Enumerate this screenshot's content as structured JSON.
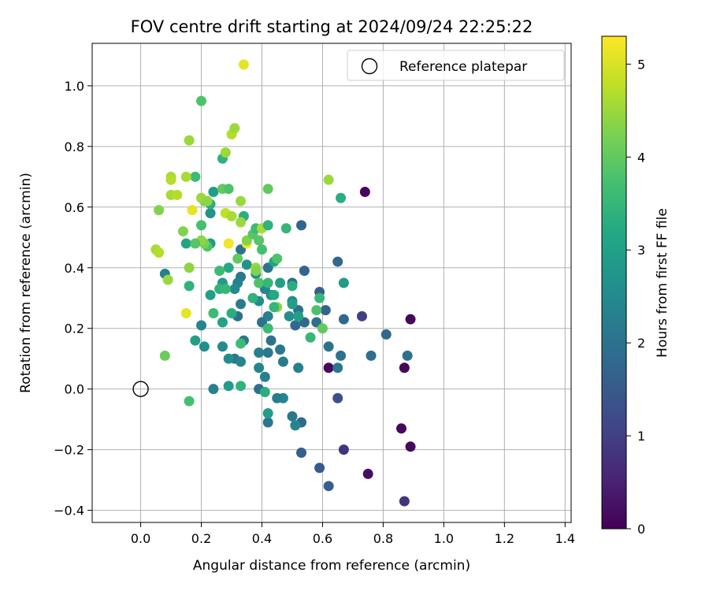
{
  "chart_data": {
    "type": "scatter",
    "title": "FOV centre drift starting at 2024/09/24 22:25:22",
    "xlabel": "Angular distance from reference (arcmin)",
    "ylabel": "Rotation from reference (arcmin)",
    "colorbar_label": "Hours from first FF file",
    "xlim": [
      -0.16,
      1.42
    ],
    "ylim": [
      -0.44,
      1.14
    ],
    "x_ticks": [
      0.0,
      0.2,
      0.4,
      0.6,
      0.8,
      1.0,
      1.2,
      1.4
    ],
    "x_tick_labels": [
      "0.0",
      "0.2",
      "0.4",
      "0.6",
      "0.8",
      "1.0",
      "1.2",
      "1.4"
    ],
    "y_ticks": [
      -0.4,
      -0.2,
      0.0,
      0.2,
      0.4,
      0.6,
      0.8,
      1.0
    ],
    "y_tick_labels": [
      "−0.4",
      "−0.2",
      "0.0",
      "0.2",
      "0.4",
      "0.6",
      "0.8",
      "1.0"
    ],
    "colorbar_range": [
      0,
      5.3
    ],
    "colorbar_ticks": [
      0,
      1,
      2,
      3,
      4,
      5
    ],
    "colorbar_tick_labels": [
      "0",
      "1",
      "2",
      "3",
      "4",
      "5"
    ],
    "colormap": "viridis",
    "grid": true,
    "legend": {
      "placement": "top-right",
      "label": "Reference platepar"
    },
    "reference_point": {
      "x": 0.0,
      "y": 0.0
    },
    "points": [
      {
        "x": 0.74,
        "y": 0.65,
        "c": 0.1
      },
      {
        "x": 0.89,
        "y": 0.23,
        "c": 0.1
      },
      {
        "x": 0.62,
        "y": 0.07,
        "c": 0.1
      },
      {
        "x": 0.87,
        "y": 0.07,
        "c": 0.1
      },
      {
        "x": 0.86,
        "y": -0.13,
        "c": 0.1
      },
      {
        "x": 0.89,
        "y": -0.19,
        "c": 0.1
      },
      {
        "x": 0.75,
        "y": -0.28,
        "c": 0.2
      },
      {
        "x": 0.87,
        "y": -0.37,
        "c": 0.8
      },
      {
        "x": 0.67,
        "y": -0.2,
        "c": 0.8
      },
      {
        "x": 0.73,
        "y": 0.24,
        "c": 1.0
      },
      {
        "x": 0.65,
        "y": -0.03,
        "c": 1.3
      },
      {
        "x": 0.59,
        "y": -0.26,
        "c": 1.5
      },
      {
        "x": 0.62,
        "y": -0.32,
        "c": 1.6
      },
      {
        "x": 0.53,
        "y": -0.21,
        "c": 1.6
      },
      {
        "x": 0.53,
        "y": 0.54,
        "c": 1.7
      },
      {
        "x": 0.54,
        "y": 0.39,
        "c": 1.7
      },
      {
        "x": 0.59,
        "y": 0.32,
        "c": 1.6
      },
      {
        "x": 0.61,
        "y": 0.26,
        "c": 1.7
      },
      {
        "x": 0.67,
        "y": 0.23,
        "c": 1.8
      },
      {
        "x": 0.65,
        "y": 0.42,
        "c": 1.8
      },
      {
        "x": 0.81,
        "y": 0.18,
        "c": 1.8
      },
      {
        "x": 0.76,
        "y": 0.11,
        "c": 1.9
      },
      {
        "x": 0.88,
        "y": 0.11,
        "c": 2.0
      },
      {
        "x": 0.66,
        "y": 0.11,
        "c": 2.0
      },
      {
        "x": 0.65,
        "y": 0.07,
        "c": 2.1
      },
      {
        "x": 0.62,
        "y": 0.14,
        "c": 2.0
      },
      {
        "x": 0.58,
        "y": 0.22,
        "c": 1.9
      },
      {
        "x": 0.54,
        "y": 0.22,
        "c": 1.8
      },
      {
        "x": 0.51,
        "y": 0.21,
        "c": 1.8
      },
      {
        "x": 0.5,
        "y": 0.35,
        "c": 1.9
      },
      {
        "x": 0.52,
        "y": 0.26,
        "c": 2.0
      },
      {
        "x": 0.53,
        "y": -0.11,
        "c": 1.8
      },
      {
        "x": 0.5,
        "y": -0.09,
        "c": 2.1
      },
      {
        "x": 0.51,
        "y": -0.12,
        "c": 2.4
      },
      {
        "x": 0.47,
        "y": -0.03,
        "c": 2.4
      },
      {
        "x": 0.45,
        "y": -0.03,
        "c": 2.2
      },
      {
        "x": 0.52,
        "y": 0.07,
        "c": 2.3
      },
      {
        "x": 0.47,
        "y": 0.09,
        "c": 2.2
      },
      {
        "x": 0.46,
        "y": 0.13,
        "c": 2.1
      },
      {
        "x": 0.43,
        "y": 0.16,
        "c": 2.0
      },
      {
        "x": 0.42,
        "y": 0.12,
        "c": 2.1
      },
      {
        "x": 0.41,
        "y": 0.04,
        "c": 2.3
      },
      {
        "x": 0.39,
        "y": 0.07,
        "c": 2.4
      },
      {
        "x": 0.39,
        "y": 0.12,
        "c": 2.3
      },
      {
        "x": 0.39,
        "y": 0.0,
        "c": 1.9
      },
      {
        "x": 0.42,
        "y": -0.11,
        "c": 2.1
      },
      {
        "x": 0.42,
        "y": -0.08,
        "c": 2.9
      },
      {
        "x": 0.41,
        "y": -0.01,
        "c": 3.3
      },
      {
        "x": 0.4,
        "y": 0.22,
        "c": 2.0
      },
      {
        "x": 0.42,
        "y": 0.24,
        "c": 2.3
      },
      {
        "x": 0.41,
        "y": 0.33,
        "c": 2.4
      },
      {
        "x": 0.43,
        "y": 0.31,
        "c": 2.5
      },
      {
        "x": 0.42,
        "y": 0.4,
        "c": 2.1
      },
      {
        "x": 0.39,
        "y": 0.29,
        "c": 2.6
      },
      {
        "x": 0.38,
        "y": 0.38,
        "c": 2.6
      },
      {
        "x": 0.35,
        "y": 0.41,
        "c": 2.7
      },
      {
        "x": 0.33,
        "y": 0.46,
        "c": 2.0
      },
      {
        "x": 0.33,
        "y": 0.37,
        "c": 2.1
      },
      {
        "x": 0.32,
        "y": 0.35,
        "c": 2.3
      },
      {
        "x": 0.31,
        "y": 0.33,
        "c": 2.5
      },
      {
        "x": 0.33,
        "y": 0.28,
        "c": 2.2
      },
      {
        "x": 0.32,
        "y": 0.24,
        "c": 2.0
      },
      {
        "x": 0.31,
        "y": 0.1,
        "c": 2.1
      },
      {
        "x": 0.33,
        "y": 0.09,
        "c": 2.4
      },
      {
        "x": 0.34,
        "y": 0.16,
        "c": 2.1
      },
      {
        "x": 0.29,
        "y": 0.1,
        "c": 2.6
      },
      {
        "x": 0.27,
        "y": 0.14,
        "c": 2.5
      },
      {
        "x": 0.24,
        "y": 0.0,
        "c": 2.3
      },
      {
        "x": 0.29,
        "y": 0.01,
        "c": 2.9
      },
      {
        "x": 0.33,
        "y": 0.01,
        "c": 3.4
      },
      {
        "x": 0.33,
        "y": 0.15,
        "c": 3.6
      },
      {
        "x": 0.3,
        "y": 0.25,
        "c": 3.3
      },
      {
        "x": 0.27,
        "y": 0.22,
        "c": 3.1
      },
      {
        "x": 0.24,
        "y": 0.25,
        "c": 3.6
      },
      {
        "x": 0.23,
        "y": 0.31,
        "c": 3.0
      },
      {
        "x": 0.27,
        "y": 0.35,
        "c": 2.9
      },
      {
        "x": 0.26,
        "y": 0.33,
        "c": 3.4
      },
      {
        "x": 0.28,
        "y": 0.33,
        "c": 3.5
      },
      {
        "x": 0.29,
        "y": 0.4,
        "c": 3.2
      },
      {
        "x": 0.26,
        "y": 0.39,
        "c": 3.6
      },
      {
        "x": 0.2,
        "y": 0.21,
        "c": 2.4
      },
      {
        "x": 0.21,
        "y": 0.14,
        "c": 2.6
      },
      {
        "x": 0.18,
        "y": 0.16,
        "c": 3.0
      },
      {
        "x": 0.16,
        "y": -0.04,
        "c": 3.7
      },
      {
        "x": 0.16,
        "y": 0.34,
        "c": 3.4
      },
      {
        "x": 0.15,
        "y": 0.48,
        "c": 3.1
      },
      {
        "x": 0.23,
        "y": 0.48,
        "c": 2.9
      },
      {
        "x": 0.22,
        "y": 0.47,
        "c": 3.8
      },
      {
        "x": 0.21,
        "y": 0.48,
        "c": 4.2
      },
      {
        "x": 0.2,
        "y": 0.49,
        "c": 4.4
      },
      {
        "x": 0.18,
        "y": 0.48,
        "c": 3.9
      },
      {
        "x": 0.2,
        "y": 0.54,
        "c": 3.7
      },
      {
        "x": 0.23,
        "y": 0.58,
        "c": 2.7
      },
      {
        "x": 0.23,
        "y": 0.61,
        "c": 3.3
      },
      {
        "x": 0.24,
        "y": 0.65,
        "c": 2.9
      },
      {
        "x": 0.21,
        "y": 0.62,
        "c": 4.2
      },
      {
        "x": 0.2,
        "y": 0.63,
        "c": 4.5
      },
      {
        "x": 0.22,
        "y": 0.62,
        "c": 4.4
      },
      {
        "x": 0.18,
        "y": 0.7,
        "c": 3.6
      },
      {
        "x": 0.15,
        "y": 0.7,
        "c": 4.6
      },
      {
        "x": 0.1,
        "y": 0.7,
        "c": 4.6
      },
      {
        "x": 0.1,
        "y": 0.69,
        "c": 4.7
      },
      {
        "x": 0.1,
        "y": 0.64,
        "c": 4.6
      },
      {
        "x": 0.12,
        "y": 0.64,
        "c": 4.7
      },
      {
        "x": 0.06,
        "y": 0.59,
        "c": 4.3
      },
      {
        "x": 0.05,
        "y": 0.46,
        "c": 4.6
      },
      {
        "x": 0.06,
        "y": 0.45,
        "c": 4.7
      },
      {
        "x": 0.08,
        "y": 0.38,
        "c": 2.3
      },
      {
        "x": 0.09,
        "y": 0.36,
        "c": 4.5
      },
      {
        "x": 0.16,
        "y": 0.4,
        "c": 4.4
      },
      {
        "x": 0.14,
        "y": 0.52,
        "c": 4.3
      },
      {
        "x": 0.08,
        "y": 0.11,
        "c": 4.1
      },
      {
        "x": 0.15,
        "y": 0.25,
        "c": 5.1
      },
      {
        "x": 0.17,
        "y": 0.59,
        "c": 5.1
      },
      {
        "x": 0.16,
        "y": 0.82,
        "c": 4.5
      },
      {
        "x": 0.2,
        "y": 0.95,
        "c": 3.8
      },
      {
        "x": 0.34,
        "y": 1.07,
        "c": 5.1
      },
      {
        "x": 0.27,
        "y": 0.76,
        "c": 3.4
      },
      {
        "x": 0.28,
        "y": 0.78,
        "c": 4.5
      },
      {
        "x": 0.3,
        "y": 0.84,
        "c": 4.7
      },
      {
        "x": 0.31,
        "y": 0.86,
        "c": 4.5
      },
      {
        "x": 0.27,
        "y": 0.66,
        "c": 4.0
      },
      {
        "x": 0.29,
        "y": 0.66,
        "c": 3.8
      },
      {
        "x": 0.33,
        "y": 0.62,
        "c": 4.5
      },
      {
        "x": 0.28,
        "y": 0.58,
        "c": 4.8
      },
      {
        "x": 0.3,
        "y": 0.57,
        "c": 4.6
      },
      {
        "x": 0.34,
        "y": 0.57,
        "c": 3.3
      },
      {
        "x": 0.33,
        "y": 0.55,
        "c": 4.5
      },
      {
        "x": 0.29,
        "y": 0.48,
        "c": 5.2
      },
      {
        "x": 0.35,
        "y": 0.48,
        "c": 5.2
      },
      {
        "x": 0.35,
        "y": 0.49,
        "c": 4.3
      },
      {
        "x": 0.32,
        "y": 0.43,
        "c": 4.0
      },
      {
        "x": 0.37,
        "y": 0.51,
        "c": 3.9
      },
      {
        "x": 0.38,
        "y": 0.53,
        "c": 3.6
      },
      {
        "x": 0.4,
        "y": 0.53,
        "c": 4.6
      },
      {
        "x": 0.39,
        "y": 0.49,
        "c": 3.9
      },
      {
        "x": 0.4,
        "y": 0.46,
        "c": 3.7
      },
      {
        "x": 0.42,
        "y": 0.54,
        "c": 3.4
      },
      {
        "x": 0.42,
        "y": 0.66,
        "c": 4.0
      },
      {
        "x": 0.44,
        "y": 0.42,
        "c": 3.1
      },
      {
        "x": 0.45,
        "y": 0.43,
        "c": 3.8
      },
      {
        "x": 0.38,
        "y": 0.4,
        "c": 4.5
      },
      {
        "x": 0.38,
        "y": 0.39,
        "c": 4.3
      },
      {
        "x": 0.39,
        "y": 0.35,
        "c": 3.8
      },
      {
        "x": 0.37,
        "y": 0.3,
        "c": 3.4
      },
      {
        "x": 0.42,
        "y": 0.35,
        "c": 3.5
      },
      {
        "x": 0.44,
        "y": 0.31,
        "c": 3.2
      },
      {
        "x": 0.45,
        "y": 0.27,
        "c": 4.4
      },
      {
        "x": 0.42,
        "y": 0.2,
        "c": 3.6
      },
      {
        "x": 0.44,
        "y": 0.27,
        "c": 3.5
      },
      {
        "x": 0.48,
        "y": 0.53,
        "c": 3.5
      },
      {
        "x": 0.49,
        "y": 0.24,
        "c": 2.6
      },
      {
        "x": 0.5,
        "y": 0.29,
        "c": 2.5
      },
      {
        "x": 0.5,
        "y": 0.28,
        "c": 3.0
      },
      {
        "x": 0.5,
        "y": 0.34,
        "c": 3.3
      },
      {
        "x": 0.52,
        "y": 0.24,
        "c": 3.0
      },
      {
        "x": 0.56,
        "y": 0.17,
        "c": 3.5
      },
      {
        "x": 0.58,
        "y": 0.26,
        "c": 3.8
      },
      {
        "x": 0.59,
        "y": 0.3,
        "c": 3.5
      },
      {
        "x": 0.6,
        "y": 0.2,
        "c": 4.0
      },
      {
        "x": 0.62,
        "y": 0.69,
        "c": 4.5
      },
      {
        "x": 0.66,
        "y": 0.63,
        "c": 3.3
      },
      {
        "x": 0.67,
        "y": 0.35,
        "c": 2.9
      },
      {
        "x": 0.46,
        "y": 0.35,
        "c": 3.0
      }
    ]
  }
}
